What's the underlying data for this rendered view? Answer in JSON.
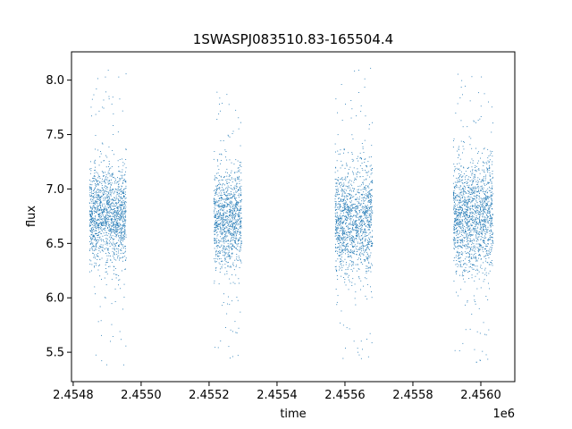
{
  "chart_data": {
    "type": "scatter",
    "title": "1SWASPJ083510.83-165504.4",
    "xlabel": "time",
    "ylabel": "flux",
    "x_offset_label": "1e6",
    "xlim": [
      2454795,
      2456100
    ],
    "ylim": [
      5.23,
      8.26
    ],
    "x_ticks": [
      2454800,
      2455000,
      2455200,
      2455400,
      2455600,
      2455800,
      2456000
    ],
    "x_tick_labels": [
      "2.4548",
      "2.4550",
      "2.4552",
      "2.4554",
      "2.4556",
      "2.4558",
      "2.4560"
    ],
    "y_ticks": [
      5.5,
      6.0,
      6.5,
      7.0,
      7.5,
      8.0
    ],
    "y_tick_labels": [
      "5.5",
      "6.0",
      "6.5",
      "7.0",
      "7.5",
      "8.0"
    ],
    "grid": false,
    "point_color": "#1f77b4",
    "series": [
      {
        "values": [
          {
            "x_range": [
              2454847,
              2454955
            ],
            "y_center": 6.75,
            "y_spread": 0.22,
            "count": 1500,
            "y_min": 5.38,
            "y_max": 8.1
          },
          {
            "x_range": [
              2455213,
              2455295
            ],
            "y_center": 6.72,
            "y_spread": 0.22,
            "count": 1100,
            "y_min": 5.42,
            "y_max": 7.95
          },
          {
            "x_range": [
              2455570,
              2455680
            ],
            "y_center": 6.72,
            "y_spread": 0.25,
            "count": 1400,
            "y_min": 5.4,
            "y_max": 8.12
          },
          {
            "x_range": [
              2455918,
              2456035
            ],
            "y_center": 6.75,
            "y_spread": 0.25,
            "count": 1600,
            "y_min": 5.38,
            "y_max": 8.12
          }
        ]
      }
    ]
  }
}
